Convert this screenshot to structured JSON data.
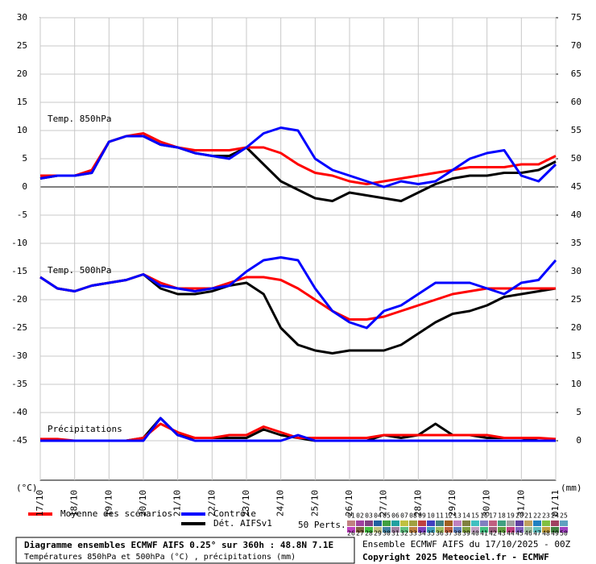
{
  "chart_data": {
    "type": "line",
    "title": "Diagramme ensembles ECMWF AIFS 0.25° sur 360h : 48.8N 7.1E",
    "subtitle": "Températures 850hPa et 500hPa (°C) , précipitations (mm)",
    "run_info": "Ensemble ECMWF AIFS du 17/10/2025 - 00Z",
    "copyright": "Copyright 2025 Meteociel.fr - ECMWF",
    "ylabel": "(°C)",
    "y2label": "(mm)",
    "annotations": [
      "Temp. 850hPa",
      "Temp. 500hPa",
      "Précipitations"
    ],
    "x": [
      0,
      0.5,
      1,
      1.5,
      2,
      2.5,
      3,
      3.5,
      4,
      4.5,
      5,
      5.5,
      6,
      6.5,
      7,
      7.5,
      8,
      8.5,
      9,
      9.5,
      10,
      10.5,
      11,
      11.5,
      12,
      12.5,
      13,
      13.5,
      14,
      14.5,
      15
    ],
    "xlim": [
      0,
      15
    ],
    "xticks": [
      {
        "value": 0,
        "label": "17/10"
      },
      {
        "value": 1,
        "label": "18/10"
      },
      {
        "value": 2,
        "label": "19/10"
      },
      {
        "value": 3,
        "label": "20/10"
      },
      {
        "value": 4,
        "label": "21/10"
      },
      {
        "value": 5,
        "label": "22/10"
      },
      {
        "value": 6,
        "label": "23/10"
      },
      {
        "value": 7,
        "label": "24/10"
      },
      {
        "value": 8,
        "label": "25/10"
      },
      {
        "value": 9,
        "label": "26/10"
      },
      {
        "value": 10,
        "label": "27/10"
      },
      {
        "value": 11,
        "label": "28/10"
      },
      {
        "value": 12,
        "label": "29/10"
      },
      {
        "value": 13,
        "label": "30/10"
      },
      {
        "value": 14,
        "label": "31/10"
      },
      {
        "value": 15,
        "label": "01/11"
      }
    ],
    "ylim": [
      -52,
      30
    ],
    "yticks": [
      -45,
      -40,
      -35,
      -30,
      -25,
      -20,
      -15,
      -10,
      -5,
      0,
      5,
      10,
      15,
      20,
      25,
      30
    ],
    "y2lim": [
      -7,
      75
    ],
    "y2ticks": [
      0,
      5,
      10,
      15,
      20,
      25,
      30,
      35,
      40,
      45,
      50,
      55,
      60,
      65,
      70,
      75
    ],
    "grid": true,
    "series": [
      {
        "name": "Moyenne des scénarios",
        "color": "#ff0000",
        "values_850": [
          2,
          2,
          2,
          3,
          8,
          9,
          9.5,
          8,
          7,
          6.5,
          6.5,
          6.5,
          7,
          7,
          6,
          4,
          2.5,
          2,
          1,
          0.5,
          1,
          1.5,
          2,
          2.5,
          3,
          3.5,
          3.5,
          3.5,
          4,
          4,
          5.5
        ],
        "values_500": [
          -16,
          -18,
          -18.5,
          -17.5,
          -17,
          -16.5,
          -15.5,
          -17,
          -18,
          -18,
          -18,
          -17,
          -16,
          -16,
          -16.5,
          -18,
          -20,
          -22,
          -23.5,
          -23.5,
          -23,
          -22,
          -21,
          -20,
          -19,
          -18.5,
          -18,
          -18,
          -18,
          -18,
          -18
        ],
        "values_precip": [
          0.3,
          0.3,
          0,
          0,
          0,
          0,
          0.5,
          3,
          1.5,
          0.5,
          0.5,
          1,
          1,
          2.5,
          1.5,
          0.5,
          0.5,
          0.5,
          0.5,
          0.5,
          1,
          1,
          1,
          1,
          1,
          1,
          1,
          0.5,
          0.5,
          0.5,
          0.3
        ]
      },
      {
        "name": "Contrôle",
        "color": "#0000ff",
        "values_850": [
          1.5,
          2,
          2,
          2.5,
          8,
          9,
          9,
          7.5,
          7,
          6,
          5.5,
          5,
          7,
          9.5,
          10.5,
          10,
          5,
          3,
          2,
          1,
          0,
          1,
          0.5,
          1,
          3,
          5,
          6,
          6.5,
          2,
          1,
          4
        ],
        "values_500": [
          -16,
          -18,
          -18.5,
          -17.5,
          -17,
          -16.5,
          -15.5,
          -17.5,
          -18,
          -18.5,
          -18,
          -17.5,
          -15,
          -13,
          -12.5,
          -13,
          -18,
          -22,
          -24,
          -25,
          -22,
          -21,
          -19,
          -17,
          -17,
          -17,
          -18,
          -19,
          -17,
          -16.5,
          -13
        ],
        "values_precip": [
          0,
          0,
          0,
          0,
          0,
          0,
          0,
          4,
          1,
          0,
          0,
          0,
          0,
          0,
          0,
          1,
          0,
          0,
          0,
          0,
          0,
          0,
          0,
          0,
          0,
          0,
          0,
          0,
          0,
          0,
          0
        ]
      },
      {
        "name": "Dét. AIFSv1",
        "color": "#000000",
        "values_850": [
          1.5,
          2,
          2,
          2.5,
          8,
          9,
          9,
          7.5,
          7,
          6,
          5.5,
          5.5,
          7,
          4,
          1,
          -0.5,
          -2,
          -2.5,
          -1,
          -1.5,
          -2,
          -2.5,
          -1,
          0.5,
          1.5,
          2,
          2,
          2.5,
          2.5,
          3,
          4.5
        ],
        "values_500": [
          -16,
          -18,
          -18.5,
          -17.5,
          -17,
          -16.5,
          -15.5,
          -18,
          -19,
          -19,
          -18.5,
          -17.5,
          -17,
          -19,
          -25,
          -28,
          -29,
          -29.5,
          -29,
          -29,
          -29,
          -28,
          -26,
          -24,
          -22.5,
          -22,
          -21,
          -19.5,
          -19,
          -18.5,
          -18
        ],
        "values_precip": [
          0,
          0,
          0,
          0,
          0,
          0,
          0.5,
          4,
          1,
          0.5,
          0.5,
          0.5,
          0.5,
          2,
          1,
          0.5,
          0,
          0,
          0,
          0,
          1,
          0.5,
          1,
          3,
          1,
          1,
          0.5,
          0.5,
          0.5,
          0,
          0
        ]
      }
    ],
    "perturbations_label": "50 Perts.",
    "perturbation_labels": [
      "01",
      "02",
      "03",
      "04",
      "05",
      "06",
      "07",
      "08",
      "09",
      "10",
      "11",
      "12",
      "13",
      "14",
      "15",
      "16",
      "17",
      "18",
      "19",
      "20",
      "21",
      "22",
      "23",
      "24",
      "25",
      "26",
      "27",
      "28",
      "29",
      "30",
      "31",
      "32",
      "33",
      "34",
      "35",
      "36",
      "37",
      "38",
      "39",
      "40",
      "41",
      "42",
      "43",
      "44",
      "45",
      "46",
      "47",
      "48",
      "49",
      "50"
    ],
    "perturbation_colors": [
      "#c08080",
      "#a040a0",
      "#804080",
      "#2060a0",
      "#40a040",
      "#20a0a0",
      "#c0c040",
      "#a0a040",
      "#c04040",
      "#4040c0",
      "#408080",
      "#a06020",
      "#c080c0",
      "#808040",
      "#40c0c0",
      "#8080c0",
      "#c06080",
      "#40a080",
      "#a0a0a0",
      "#6040a0",
      "#c0a060",
      "#2080c0",
      "#80c040",
      "#a04060",
      "#60a0c0",
      "#c040c0",
      "#806040",
      "#40c040",
      "#c0c080",
      "#4080a0",
      "#a080a0",
      "#60c080",
      "#c08040",
      "#8040c0",
      "#40a0c0",
      "#a0c060",
      "#c06040",
      "#6080c0",
      "#80a040",
      "#c0a0c0",
      "#40c080",
      "#a06080",
      "#60a040",
      "#c04080",
      "#8060c0",
      "#a0c0a0",
      "#60c0c0",
      "#c0a040",
      "#408040",
      "#a040c0"
    ]
  }
}
